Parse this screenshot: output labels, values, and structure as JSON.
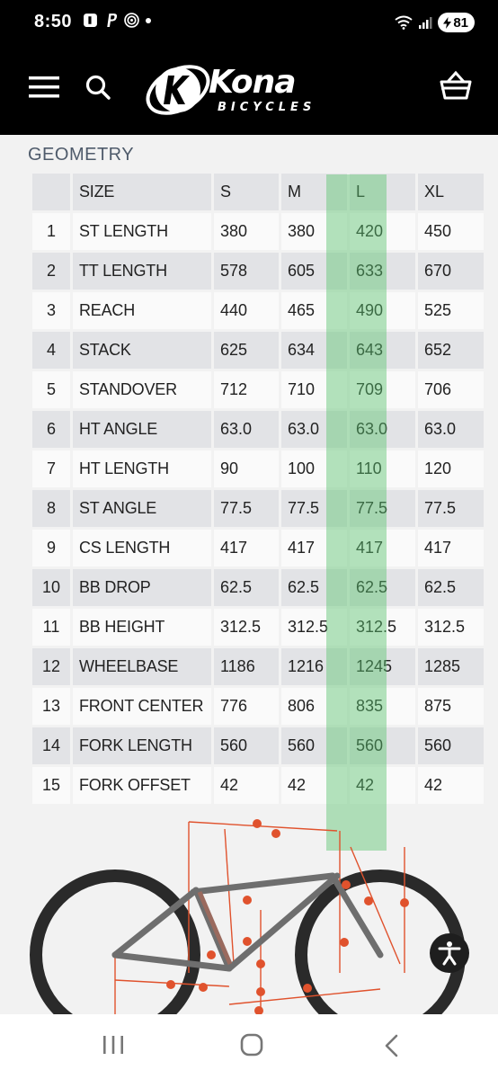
{
  "status_bar": {
    "time": "8:50",
    "left_icons": [
      "notification-icon",
      "paypal-icon",
      "nfc-icon",
      "dot-icon"
    ],
    "right_icons": [
      "wifi-icon",
      "signal-icon"
    ],
    "battery_level": "81"
  },
  "header": {
    "logo_word": "Kona",
    "logo_sub": "BICYCLES",
    "menu_icon": "hamburger-menu-icon",
    "search_icon": "search-icon",
    "cart_icon": "basket-cart-icon"
  },
  "geometry": {
    "title": "GEOMETRY",
    "header": {
      "label": "SIZE",
      "sizes": [
        "S",
        "M",
        "L",
        "XL"
      ]
    },
    "highlight_size": "L",
    "rows": [
      {
        "num": "1",
        "label": "ST LENGTH",
        "values": [
          "380",
          "380",
          "420",
          "450"
        ]
      },
      {
        "num": "2",
        "label": "TT LENGTH",
        "values": [
          "578",
          "605",
          "633",
          "670"
        ]
      },
      {
        "num": "3",
        "label": "REACH",
        "values": [
          "440",
          "465",
          "490",
          "525"
        ]
      },
      {
        "num": "4",
        "label": "STACK",
        "values": [
          "625",
          "634",
          "643",
          "652"
        ]
      },
      {
        "num": "5",
        "label": "STANDOVER",
        "values": [
          "712",
          "710",
          "709",
          "706"
        ]
      },
      {
        "num": "6",
        "label": "HT ANGLE",
        "values": [
          "63.0",
          "63.0",
          "63.0",
          "63.0"
        ]
      },
      {
        "num": "7",
        "label": "HT LENGTH",
        "values": [
          "90",
          "100",
          "110",
          "120"
        ]
      },
      {
        "num": "8",
        "label": "ST ANGLE",
        "values": [
          "77.5",
          "77.5",
          "77.5",
          "77.5"
        ]
      },
      {
        "num": "9",
        "label": "CS LENGTH",
        "values": [
          "417",
          "417",
          "417",
          "417"
        ]
      },
      {
        "num": "10",
        "label": "BB DROP",
        "values": [
          "62.5",
          "62.5",
          "62.5",
          "62.5"
        ]
      },
      {
        "num": "11",
        "label": "BB HEIGHT",
        "values": [
          "312.5",
          "312.5",
          "312.5",
          "312.5"
        ]
      },
      {
        "num": "12",
        "label": "WHEELBASE",
        "values": [
          "1186",
          "1216",
          "1245",
          "1285"
        ]
      },
      {
        "num": "13",
        "label": "FRONT CENTER",
        "values": [
          "776",
          "806",
          "835",
          "875"
        ]
      },
      {
        "num": "14",
        "label": "FORK LENGTH",
        "values": [
          "560",
          "560",
          "560",
          "560"
        ]
      },
      {
        "num": "15",
        "label": "FORK OFFSET",
        "values": [
          "42",
          "42",
          "42",
          "42"
        ]
      }
    ]
  },
  "colors": {
    "highlight": "#5cc46e",
    "bike_frame": "#6e6e6e",
    "dimension_lines": "#e0522d",
    "header_bg": "#000000"
  },
  "accessibility_icon": "accessibility-icon",
  "system_nav": {
    "recent": "recent-apps-icon",
    "home": "home-icon",
    "back": "back-icon"
  }
}
